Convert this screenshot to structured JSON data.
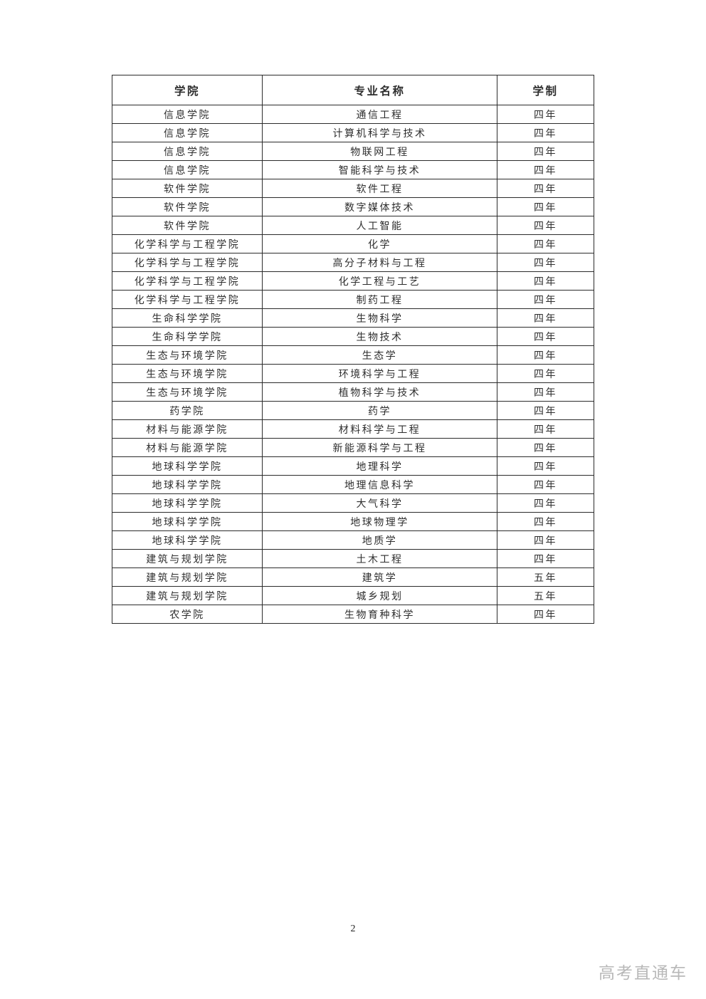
{
  "document": {
    "page_number": "2",
    "watermark": "高考直通车"
  },
  "colors": {
    "table_border": "#2b2b2b",
    "body_text": "#2e2e2e",
    "watermark_gray": "#b8b8b8"
  },
  "table": {
    "headers": [
      "学院",
      "专业名称",
      "学制"
    ],
    "rows": [
      [
        "信息学院",
        "通信工程",
        "四年"
      ],
      [
        "信息学院",
        "计算机科学与技术",
        "四年"
      ],
      [
        "信息学院",
        "物联网工程",
        "四年"
      ],
      [
        "信息学院",
        "智能科学与技术",
        "四年"
      ],
      [
        "软件学院",
        "软件工程",
        "四年"
      ],
      [
        "软件学院",
        "数字媒体技术",
        "四年"
      ],
      [
        "软件学院",
        "人工智能",
        "四年"
      ],
      [
        "化学科学与工程学院",
        "化学",
        "四年"
      ],
      [
        "化学科学与工程学院",
        "高分子材料与工程",
        "四年"
      ],
      [
        "化学科学与工程学院",
        "化学工程与工艺",
        "四年"
      ],
      [
        "化学科学与工程学院",
        "制药工程",
        "四年"
      ],
      [
        "生命科学学院",
        "生物科学",
        "四年"
      ],
      [
        "生命科学学院",
        "生物技术",
        "四年"
      ],
      [
        "生态与环境学院",
        "生态学",
        "四年"
      ],
      [
        "生态与环境学院",
        "环境科学与工程",
        "四年"
      ],
      [
        "生态与环境学院",
        "植物科学与技术",
        "四年"
      ],
      [
        "药学院",
        "药学",
        "四年"
      ],
      [
        "材料与能源学院",
        "材料科学与工程",
        "四年"
      ],
      [
        "材料与能源学院",
        "新能源科学与工程",
        "四年"
      ],
      [
        "地球科学学院",
        "地理科学",
        "四年"
      ],
      [
        "地球科学学院",
        "地理信息科学",
        "四年"
      ],
      [
        "地球科学学院",
        "大气科学",
        "四年"
      ],
      [
        "地球科学学院",
        "地球物理学",
        "四年"
      ],
      [
        "地球科学学院",
        "地质学",
        "四年"
      ],
      [
        "建筑与规划学院",
        "土木工程",
        "四年"
      ],
      [
        "建筑与规划学院",
        "建筑学",
        "五年"
      ],
      [
        "建筑与规划学院",
        "城乡规划",
        "五年"
      ],
      [
        "农学院",
        "生物育种科学",
        "四年"
      ]
    ]
  }
}
